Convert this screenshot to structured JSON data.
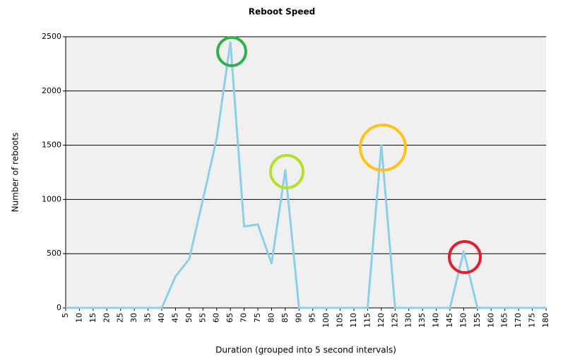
{
  "chart_data": {
    "type": "line",
    "title": "Reboot Speed",
    "x_label": "Duration (grouped into 5 second intervals)",
    "y_label": "Number of reboots",
    "x": [
      5,
      10,
      15,
      20,
      25,
      30,
      35,
      40,
      45,
      50,
      55,
      60,
      65,
      70,
      75,
      80,
      85,
      90,
      95,
      100,
      105,
      110,
      115,
      120,
      125,
      130,
      135,
      140,
      145,
      150,
      155,
      160,
      165,
      170,
      175,
      180
    ],
    "series": [
      {
        "name": "Reboots",
        "color": "#8ccfe8",
        "values": [
          0,
          0,
          0,
          0,
          0,
          0,
          0,
          0,
          290,
          450,
          1000,
          1560,
          2450,
          750,
          770,
          410,
          1270,
          0,
          0,
          0,
          0,
          0,
          0,
          1500,
          0,
          0,
          0,
          0,
          0,
          520,
          0,
          0,
          0,
          0,
          0,
          0
        ]
      }
    ],
    "xlim": [
      5,
      180
    ],
    "xticks": [
      5,
      10,
      15,
      20,
      25,
      30,
      35,
      40,
      45,
      50,
      55,
      60,
      65,
      70,
      75,
      80,
      85,
      90,
      95,
      100,
      105,
      110,
      115,
      120,
      125,
      130,
      135,
      140,
      145,
      150,
      155,
      160,
      165,
      170,
      175,
      180
    ],
    "ylim": [
      0,
      2500
    ],
    "yticks": [
      0,
      500,
      1000,
      1500,
      2000,
      2500
    ],
    "grid": true
  }
}
